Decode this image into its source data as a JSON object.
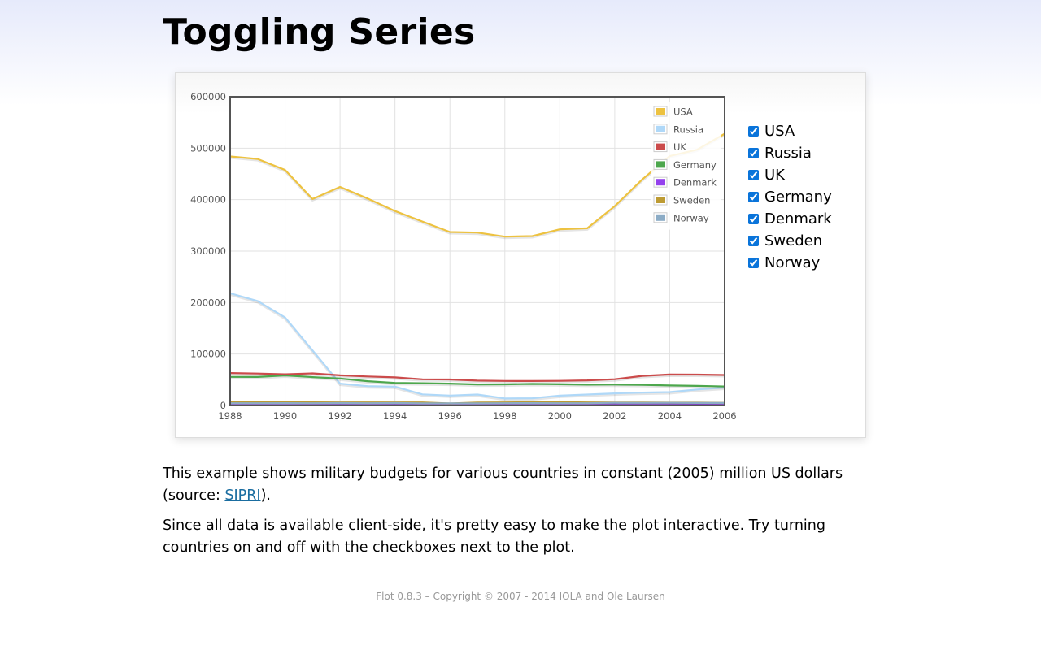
{
  "page": {
    "title": "Toggling Series",
    "desc1_pre": "This example shows military budgets for various countries in constant (2005) million US dollars (source: ",
    "desc1_link": "SIPRI",
    "desc1_post": ").",
    "desc2": "Since all data is available client-side, it's pretty easy to make the plot interactive. Try turning countries on and off with the checkboxes next to the plot.",
    "footer": "Flot 0.8.3 – Copyright © 2007 - 2014 IOLA and Ole Laursen"
  },
  "choices": [
    {
      "label": "USA",
      "checked": true
    },
    {
      "label": "Russia",
      "checked": true
    },
    {
      "label": "UK",
      "checked": true
    },
    {
      "label": "Germany",
      "checked": true
    },
    {
      "label": "Denmark",
      "checked": true
    },
    {
      "label": "Sweden",
      "checked": true
    },
    {
      "label": "Norway",
      "checked": true
    }
  ],
  "chart_data": {
    "type": "line",
    "title": "",
    "xlabel": "",
    "ylabel": "",
    "xlim": [
      1988,
      2006
    ],
    "ylim": [
      0,
      600000
    ],
    "xticks": [
      1988,
      1990,
      1992,
      1994,
      1996,
      1998,
      2000,
      2002,
      2004,
      2006
    ],
    "yticks": [
      0,
      100000,
      200000,
      300000,
      400000,
      500000,
      600000
    ],
    "grid": true,
    "legend_position": "top-right",
    "series": [
      {
        "name": "USA",
        "color": "#edc240",
        "x": [
          1988,
          1989,
          1990,
          1991,
          1992,
          1993,
          1994,
          1995,
          1996,
          1997,
          1998,
          1999,
          2000,
          2001,
          2002,
          2003,
          2004,
          2005,
          2006
        ],
        "y": [
          483994,
          479060,
          457648,
          401190,
          424705,
          402375,
          377867,
          357474,
          337105,
          336061,
          328162,
          329138,
          342358,
          344374,
          387303,
          439200,
          484500,
          497000,
          528000
        ]
      },
      {
        "name": "Russia",
        "color": "#afd8f8",
        "x": [
          1988,
          1989,
          1990,
          1991,
          1992,
          1993,
          1994,
          1995,
          1996,
          1997,
          1998,
          1999,
          2000,
          2001,
          2002,
          2003,
          2004,
          2005,
          2006
        ],
        "y": [
          218000,
          203000,
          171000,
          107000,
          42500,
          37600,
          36600,
          21700,
          19200,
          21300,
          13600,
          14000,
          19100,
          21300,
          23600,
          25100,
          26100,
          31100,
          34700
        ]
      },
      {
        "name": "UK",
        "color": "#cb4b4b",
        "x": [
          1988,
          1989,
          1990,
          1991,
          1992,
          1993,
          1994,
          1995,
          1996,
          1997,
          1998,
          1999,
          2000,
          2001,
          2002,
          2003,
          2004,
          2005,
          2006
        ],
        "y": [
          62982,
          62027,
          60696,
          62348,
          58560,
          56393,
          54579,
          50818,
          50554,
          48276,
          47691,
          47529,
          47778,
          48760,
          50949,
          57452,
          60234,
          60076,
          59213
        ]
      },
      {
        "name": "Germany",
        "color": "#4da74d",
        "x": [
          1988,
          1989,
          1990,
          1991,
          1992,
          1993,
          1994,
          1995,
          1996,
          1997,
          1998,
          1999,
          2000,
          2001,
          2002,
          2003,
          2004,
          2005,
          2006
        ],
        "y": [
          55627,
          55475,
          58464,
          55134,
          52436,
          47139,
          43962,
          43238,
          42395,
          40854,
          40993,
          41822,
          41147,
          40474,
          40604,
          40044,
          38816,
          38060,
          36984
        ]
      },
      {
        "name": "Denmark",
        "color": "#9440ed",
        "x": [
          1988,
          1989,
          1990,
          1991,
          1992,
          1993,
          1994,
          1995,
          1996,
          1997,
          1998,
          1999,
          2000,
          2001,
          2002,
          2003,
          2004,
          2005,
          2006
        ],
        "y": [
          3813,
          3719,
          3722,
          3789,
          3720,
          3730,
          3636,
          3598,
          3610,
          3655,
          3695,
          3673,
          3553,
          3774,
          3728,
          3618,
          3638,
          3467,
          3770
        ]
      },
      {
        "name": "Sweden",
        "color": "#bd9b33",
        "x": [
          1988,
          1989,
          1990,
          1991,
          1992,
          1993,
          1994,
          1995,
          1996,
          1997,
          1998,
          1999,
          2000,
          2001,
          2002,
          2003,
          2004,
          2005,
          2006
        ],
        "y": [
          6402,
          6474,
          6605,
          6209,
          6035,
          6020,
          6000,
          6018,
          3958,
          5780,
          5954,
          6178,
          6411,
          5993,
          5833,
          5791,
          5450,
          5521,
          5271
        ]
      },
      {
        "name": "Norway",
        "color": "#8cacc6",
        "x": [
          1988,
          1989,
          1990,
          1991,
          1992,
          1993,
          1994,
          1995,
          1996,
          1997,
          1998,
          1999,
          2000,
          2001,
          2002,
          2003,
          2004,
          2005,
          2006
        ],
        "y": [
          4382,
          4498,
          4535,
          4398,
          4766,
          4441,
          4670,
          4217,
          4275,
          4203,
          4482,
          4506,
          4358,
          4385,
          5269,
          5066,
          5194,
          4887,
          4891
        ]
      }
    ]
  }
}
